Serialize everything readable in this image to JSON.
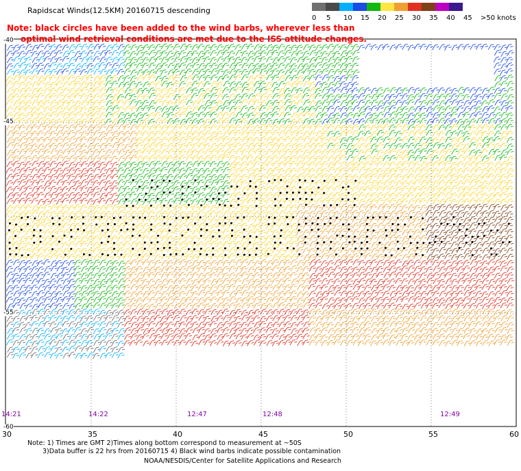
{
  "title": "Rapidscat Winds(12.5KM) 20160715 descending",
  "note_line1": "Note: black circles have been added to the wind barbs, wherever less than",
  "note_line2": "optimal wind retrieval conditions are met due to the ISS attitude changes.",
  "legend": {
    "labels": [
      "0",
      "5",
      "10",
      "15",
      "20",
      "25",
      "30",
      "35",
      "40",
      "45",
      ">50 knots"
    ],
    "colors": [
      "#707070",
      "#4a4a4a",
      "#00b0ff",
      "#1b4be8",
      "#10b810",
      "#ffe640",
      "#f0a030",
      "#e03020",
      "#804018",
      "#c000c0",
      "#3a1890"
    ]
  },
  "lat_labels": [
    "-40",
    "-45",
    "-55",
    "-60"
  ],
  "lon_labels": [
    "30",
    "35",
    "40",
    "45",
    "50",
    "55",
    "60"
  ],
  "times": [
    "14:21",
    "14:22",
    "12:47",
    "12:48",
    "12:49"
  ],
  "footer": {
    "line1": "Note: 1) Times are GMT 2)Times along bottom correspond to measurement at ~50S",
    "line2": "3)Data buffer is 22 hrs from 20160715 4) Black wind barbs indicate possible contamination",
    "line3": "NOAA/NESDIS/Center for Satellite Applications and Research"
  }
}
